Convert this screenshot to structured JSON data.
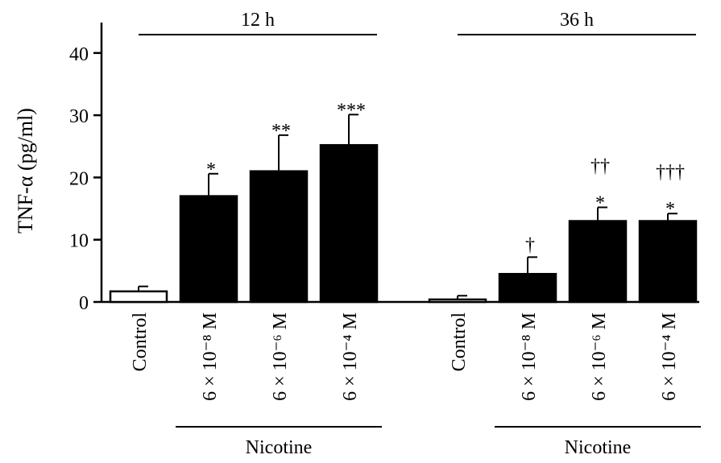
{
  "chart_data": {
    "type": "bar",
    "ylabel": "TNF-α (pg/ml)",
    "ylim": [
      0,
      45
    ],
    "yticks": [
      0,
      10,
      20,
      30,
      40
    ],
    "grid": false,
    "groups": [
      {
        "label": "12 h",
        "treatment_label": "Nicotine",
        "bars": [
          {
            "category": "Control",
            "value": 1.7,
            "error": 0.8,
            "fill": "white",
            "sig_lines": []
          },
          {
            "category": "6 × 10⁻⁸ M",
            "value": 17.0,
            "error": 3.6,
            "fill": "black",
            "sig_lines": [
              "*"
            ]
          },
          {
            "category": "6 × 10⁻⁶ M",
            "value": 21.0,
            "error": 5.8,
            "fill": "black",
            "sig_lines": [
              "**"
            ]
          },
          {
            "category": "6 × 10⁻⁴ M",
            "value": 25.2,
            "error": 4.9,
            "fill": "black",
            "sig_lines": [
              "***"
            ]
          }
        ]
      },
      {
        "label": "36 h",
        "treatment_label": "Nicotine",
        "bars": [
          {
            "category": "Control",
            "value": 0.4,
            "error": 0.6,
            "fill": "white",
            "sig_lines": []
          },
          {
            "category": "6 × 10⁻⁸ M",
            "value": 4.5,
            "error": 2.7,
            "fill": "black",
            "sig_lines": [
              "†"
            ]
          },
          {
            "category": "6 × 10⁻⁶ M",
            "value": 13.0,
            "error": 2.2,
            "fill": "black",
            "sig_lines": [
              "††",
              "*"
            ]
          },
          {
            "category": "6 × 10⁻⁴ M",
            "value": 13.0,
            "error": 1.2,
            "fill": "black",
            "sig_lines": [
              "†††",
              "*"
            ]
          }
        ]
      }
    ]
  }
}
